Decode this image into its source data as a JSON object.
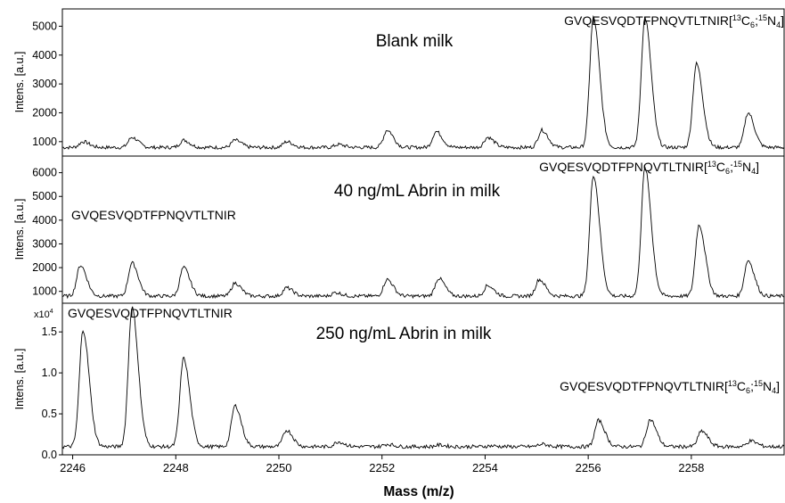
{
  "figure": {
    "xlabel": "Mass (m/z)",
    "x_ticks": [
      "2246",
      "2248",
      "2250",
      "2252",
      "2254",
      "2256",
      "2258"
    ]
  },
  "chart_data": [
    {
      "type": "line",
      "title": "Blank milk",
      "ylabel": "Intens. [a.u.]",
      "xlabel": "Mass (m/z)",
      "xlim": [
        2245.8,
        2259.8
      ],
      "ylim": [
        500,
        5600
      ],
      "y_ticks": [
        "1000",
        "2000",
        "3000",
        "4000",
        "5000"
      ],
      "annotations": [
        {
          "text": "GVQESVQDTFPNQVTLTNIR[13C6;15N4]",
          "parts": [
            "GVQESVQDTFPNQVTLTNIR[",
            "13",
            "C",
            "6",
            ";",
            "15",
            "N",
            "4",
            "]"
          ],
          "x": 2256.6
        }
      ],
      "baseline": 800,
      "peaks": [
        {
          "x": 2246.2,
          "y": 1000
        },
        {
          "x": 2247.15,
          "y": 1150
        },
        {
          "x": 2248.15,
          "y": 1050
        },
        {
          "x": 2249.15,
          "y": 1050
        },
        {
          "x": 2250.15,
          "y": 1000
        },
        {
          "x": 2251.15,
          "y": 900
        },
        {
          "x": 2252.1,
          "y": 1400
        },
        {
          "x": 2253.05,
          "y": 1350
        },
        {
          "x": 2254.05,
          "y": 1150
        },
        {
          "x": 2255.1,
          "y": 1400
        },
        {
          "x": 2256.1,
          "y": 5300
        },
        {
          "x": 2257.1,
          "y": 5300
        },
        {
          "x": 2258.1,
          "y": 3700
        },
        {
          "x": 2259.1,
          "y": 2000
        }
      ]
    },
    {
      "type": "line",
      "title": "40 ng/mL Abrin in milk",
      "ylabel": "Intens. [a.u.]",
      "xlabel": "Mass (m/z)",
      "xlim": [
        2245.8,
        2259.8
      ],
      "ylim": [
        500,
        6700
      ],
      "y_ticks": [
        "1000",
        "2000",
        "3000",
        "4000",
        "5000",
        "6000"
      ],
      "annotations": [
        {
          "text": "GVQESVQDTFPNQVTLTNIR[13C6;15N4]",
          "parts": [
            "GVQESVQDTFPNQVTLTNIR[",
            "13",
            "C",
            "6",
            ";",
            "15",
            "N",
            "4",
            "]"
          ],
          "x": 2256.6
        },
        {
          "text": "GVQESVQDTFPNQVTLTNIR",
          "x": 2246.6
        }
      ],
      "baseline": 800,
      "peaks": [
        {
          "x": 2246.15,
          "y": 2100
        },
        {
          "x": 2247.15,
          "y": 2200
        },
        {
          "x": 2248.15,
          "y": 2000
        },
        {
          "x": 2249.15,
          "y": 1350
        },
        {
          "x": 2250.15,
          "y": 1150
        },
        {
          "x": 2251.1,
          "y": 950
        },
        {
          "x": 2252.1,
          "y": 1500
        },
        {
          "x": 2253.1,
          "y": 1550
        },
        {
          "x": 2254.05,
          "y": 1250
        },
        {
          "x": 2255.05,
          "y": 1500
        },
        {
          "x": 2256.1,
          "y": 5900
        },
        {
          "x": 2257.1,
          "y": 6200
        },
        {
          "x": 2258.15,
          "y": 3800
        },
        {
          "x": 2259.1,
          "y": 2300
        }
      ]
    },
    {
      "type": "line",
      "title": "250 ng/mL Abrin in milk",
      "ylabel": "Intens. [a.u.]",
      "xlabel": "Mass (m/z)",
      "y_multiplier": "x10",
      "y_multiplier_exp": "4",
      "xlim": [
        2245.8,
        2259.8
      ],
      "ylim": [
        0,
        1.85
      ],
      "y_ticks": [
        "0.0",
        "0.5",
        "1.0",
        "1.5"
      ],
      "annotations": [
        {
          "text": "GVQESVQDTFPNQVTLTNIR",
          "x": 2246.0
        },
        {
          "text": "GVQESVQDTFPNQVTLTNIR[13C6;15N4]",
          "parts": [
            "GVQESVQDTFPNQVTLTNIR[",
            "13",
            "C",
            "6",
            ";",
            "15",
            "N",
            "4",
            "]"
          ],
          "x": 2257.2
        }
      ],
      "baseline": 0.1,
      "peaks": [
        {
          "x": 2246.2,
          "y": 1.52
        },
        {
          "x": 2247.15,
          "y": 1.8
        },
        {
          "x": 2248.15,
          "y": 1.18
        },
        {
          "x": 2249.15,
          "y": 0.6
        },
        {
          "x": 2250.15,
          "y": 0.3
        },
        {
          "x": 2251.15,
          "y": 0.16
        },
        {
          "x": 2252.1,
          "y": 0.13
        },
        {
          "x": 2253.1,
          "y": 0.12
        },
        {
          "x": 2254.1,
          "y": 0.11
        },
        {
          "x": 2255.1,
          "y": 0.13
        },
        {
          "x": 2256.2,
          "y": 0.42
        },
        {
          "x": 2257.2,
          "y": 0.43
        },
        {
          "x": 2258.2,
          "y": 0.29
        },
        {
          "x": 2259.15,
          "y": 0.17
        }
      ]
    }
  ]
}
